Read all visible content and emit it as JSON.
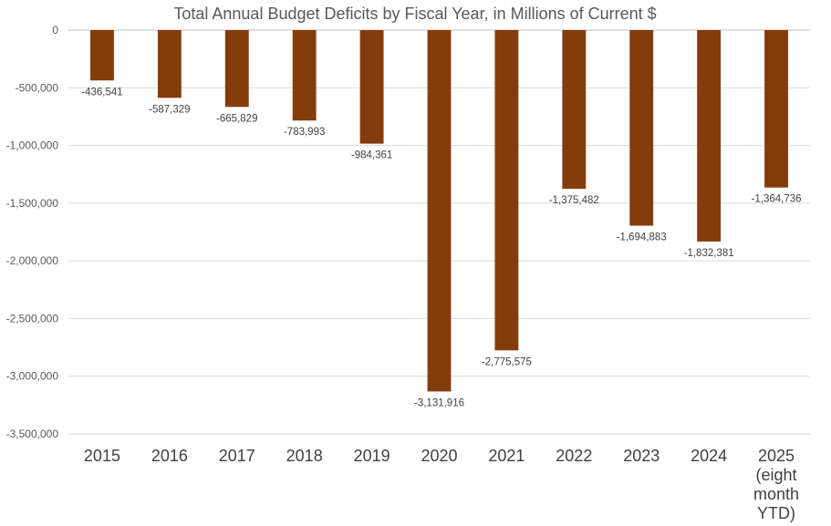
{
  "chart_data": {
    "type": "bar",
    "title": "Total Annual Budget Deficits by Fiscal Year, in Millions of Current $",
    "xlabel": "",
    "ylabel": "",
    "categories": [
      [
        "2015"
      ],
      [
        "2016"
      ],
      [
        "2017"
      ],
      [
        "2018"
      ],
      [
        "2019"
      ],
      [
        "2020"
      ],
      [
        "2021"
      ],
      [
        "2022"
      ],
      [
        "2023"
      ],
      [
        "2024"
      ],
      [
        "2025",
        "(eight",
        "month",
        "YTD)"
      ]
    ],
    "values": [
      -436541,
      -587329,
      -665829,
      -783993,
      -984361,
      -3131916,
      -2775575,
      -1375482,
      -1694883,
      -1832381,
      -1364736
    ],
    "data_labels": [
      "-436,541",
      "-587,329",
      "-665,829",
      "-783,993",
      "-984,361",
      "-3,131,916",
      "-2,775,575",
      "-1,375,482",
      "-1,694,883",
      "-1,832,381",
      "-1,364,736"
    ],
    "ylim": [
      -3500000,
      0
    ],
    "yticks": [
      0,
      -500000,
      -1000000,
      -1500000,
      -2000000,
      -2500000,
      -3000000,
      -3500000
    ],
    "ytick_labels": [
      "0",
      "-500,000",
      "-1,000,000",
      "-1,500,000",
      "-2,000,000",
      "-2,500,000",
      "-3,000,000",
      "-3,500,000"
    ],
    "grid": true,
    "legend": "none",
    "bar_color": "#843C0C"
  }
}
